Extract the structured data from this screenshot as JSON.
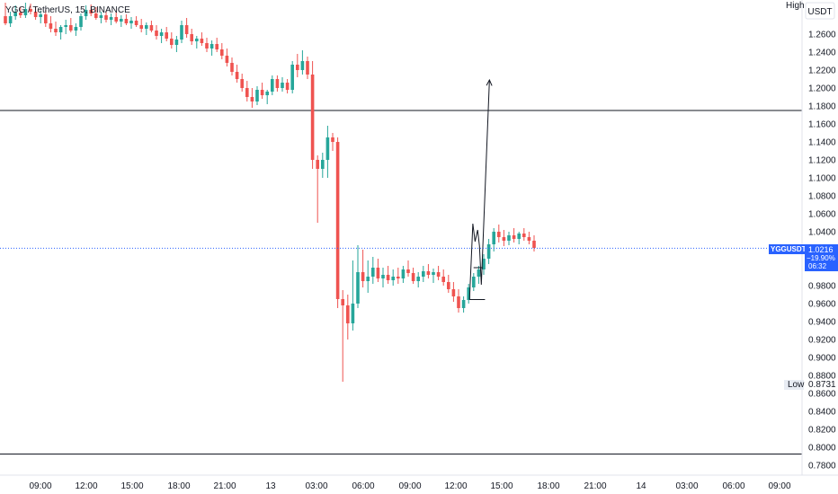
{
  "header": {
    "symbol_title": "YGG / TetherUS, 15, BINANCE",
    "currency_button": "USDT",
    "high_label": "High",
    "low_label": "Low",
    "low_value": "0.8731"
  },
  "price_tag": {
    "symbol": "YGGUSDT",
    "price": "1.0216",
    "change": "−19.90%",
    "countdown": "06:32"
  },
  "colors": {
    "up": "#26a69a",
    "down": "#ef5350",
    "price_line": "#2962ff",
    "drawing": "#131722",
    "grid_border": "#e0e3eb"
  },
  "chart_data": {
    "type": "candlestick",
    "ylim": [
      0.77,
      1.295
    ],
    "y_ticks": [
      1.26,
      1.24,
      1.22,
      1.2,
      1.18,
      1.16,
      1.14,
      1.12,
      1.1,
      1.08,
      1.06,
      1.04,
      1.02,
      1.0,
      0.98,
      0.96,
      0.94,
      0.92,
      0.9,
      0.88,
      0.86,
      0.84,
      0.82,
      0.8,
      0.78
    ],
    "x_ticks": [
      "09:00",
      "12:00",
      "15:00",
      "18:00",
      "21:00",
      "13",
      "03:00",
      "06:00",
      "09:00",
      "12:00",
      "15:00",
      "18:00",
      "21:00",
      "14",
      "03:00",
      "06:00",
      "09:00"
    ],
    "last_price": 1.0216,
    "low": 0.8731,
    "horizontal_levels": [
      1.175,
      0.7925
    ],
    "candles": [
      [
        1.28,
        1.295,
        1.27,
        1.272
      ],
      [
        1.272,
        1.285,
        1.268,
        1.28
      ],
      [
        1.28,
        1.292,
        1.276,
        1.284
      ],
      [
        1.284,
        1.29,
        1.278,
        1.281
      ],
      [
        1.281,
        1.295,
        1.278,
        1.288
      ],
      [
        1.288,
        1.294,
        1.282,
        1.285
      ],
      [
        1.285,
        1.291,
        1.276,
        1.279
      ],
      [
        1.279,
        1.286,
        1.272,
        1.282
      ],
      [
        1.282,
        1.287,
        1.268,
        1.272
      ],
      [
        1.272,
        1.28,
        1.262,
        1.266
      ],
      [
        1.266,
        1.274,
        1.258,
        1.262
      ],
      [
        1.262,
        1.27,
        1.254,
        1.268
      ],
      [
        1.268,
        1.276,
        1.26,
        1.27
      ],
      [
        1.27,
        1.278,
        1.262,
        1.264
      ],
      [
        1.264,
        1.272,
        1.258,
        1.268
      ],
      [
        1.268,
        1.283,
        1.264,
        1.28
      ],
      [
        1.28,
        1.292,
        1.276,
        1.287
      ],
      [
        1.287,
        1.293,
        1.28,
        1.283
      ],
      [
        1.283,
        1.29,
        1.276,
        1.278
      ],
      [
        1.278,
        1.285,
        1.272,
        1.281
      ],
      [
        1.281,
        1.286,
        1.273,
        1.276
      ],
      [
        1.276,
        1.283,
        1.27,
        1.279
      ],
      [
        1.279,
        1.284,
        1.272,
        1.274
      ],
      [
        1.274,
        1.281,
        1.268,
        1.277
      ],
      [
        1.277,
        1.282,
        1.27,
        1.272
      ],
      [
        1.272,
        1.279,
        1.266,
        1.275
      ],
      [
        1.275,
        1.28,
        1.268,
        1.27
      ],
      [
        1.27,
        1.277,
        1.262,
        1.266
      ],
      [
        1.266,
        1.273,
        1.259,
        1.27
      ],
      [
        1.27,
        1.275,
        1.262,
        1.264
      ],
      [
        1.264,
        1.27,
        1.254,
        1.258
      ],
      [
        1.258,
        1.266,
        1.25,
        1.262
      ],
      [
        1.262,
        1.268,
        1.252,
        1.255
      ],
      [
        1.255,
        1.262,
        1.244,
        1.248
      ],
      [
        1.248,
        1.258,
        1.24,
        1.254
      ],
      [
        1.254,
        1.275,
        1.25,
        1.27
      ],
      [
        1.27,
        1.278,
        1.256,
        1.26
      ],
      [
        1.26,
        1.266,
        1.248,
        1.252
      ],
      [
        1.252,
        1.258,
        1.244,
        1.255
      ],
      [
        1.255,
        1.262,
        1.247,
        1.25
      ],
      [
        1.25,
        1.256,
        1.24,
        1.244
      ],
      [
        1.244,
        1.253,
        1.236,
        1.249
      ],
      [
        1.249,
        1.256,
        1.24,
        1.243
      ],
      [
        1.243,
        1.25,
        1.232,
        1.236
      ],
      [
        1.236,
        1.244,
        1.224,
        1.228
      ],
      [
        1.228,
        1.234,
        1.214,
        1.218
      ],
      [
        1.218,
        1.226,
        1.206,
        1.21
      ],
      [
        1.21,
        1.216,
        1.196,
        1.2
      ],
      [
        1.2,
        1.208,
        1.185,
        1.19
      ],
      [
        1.19,
        1.2,
        1.178,
        1.185
      ],
      [
        1.185,
        1.202,
        1.181,
        1.198
      ],
      [
        1.198,
        1.206,
        1.188,
        1.192
      ],
      [
        1.192,
        1.198,
        1.182,
        1.196
      ],
      [
        1.196,
        1.214,
        1.192,
        1.21
      ],
      [
        1.21,
        1.214,
        1.196,
        1.2
      ],
      [
        1.2,
        1.212,
        1.196,
        1.206
      ],
      [
        1.206,
        1.21,
        1.194,
        1.198
      ],
      [
        1.198,
        1.23,
        1.194,
        1.226
      ],
      [
        1.226,
        1.238,
        1.212,
        1.22
      ],
      [
        1.22,
        1.242,
        1.215,
        1.23
      ],
      [
        1.23,
        1.235,
        1.21,
        1.215
      ],
      [
        1.215,
        1.23,
        1.11,
        1.12
      ],
      [
        1.12,
        1.125,
        1.05,
        1.11
      ],
      [
        1.11,
        1.128,
        1.1,
        1.12
      ],
      [
        1.12,
        1.158,
        1.1,
        1.145
      ],
      [
        1.145,
        1.15,
        1.13,
        1.14
      ],
      [
        1.14,
        1.145,
        0.955,
        0.965
      ],
      [
        0.965,
        0.975,
        0.873,
        0.958
      ],
      [
        0.958,
        0.97,
        0.92,
        0.938
      ],
      [
        0.938,
        1.008,
        0.93,
        0.96
      ],
      [
        0.96,
        1.025,
        0.955,
        0.995
      ],
      [
        0.995,
        1.02,
        0.978,
        0.985
      ],
      [
        0.985,
        1.008,
        0.972,
        0.99
      ],
      [
        0.99,
        1.012,
        0.982,
        1.0
      ],
      [
        1.0,
        1.01,
        0.984,
        0.988
      ],
      [
        0.988,
        1.0,
        0.978,
        0.992
      ],
      [
        0.992,
        1.002,
        0.982,
        0.986
      ],
      [
        0.986,
        0.998,
        0.98,
        0.99
      ],
      [
        0.99,
        1.0,
        0.982,
        0.988
      ],
      [
        0.988,
        1.002,
        0.983,
        0.998
      ],
      [
        0.998,
        1.008,
        0.99,
        0.994
      ],
      [
        0.994,
        1.0,
        0.982,
        0.985
      ],
      [
        0.985,
        0.995,
        0.978,
        0.99
      ],
      [
        0.99,
        1.002,
        0.984,
        0.996
      ],
      [
        0.996,
        1.004,
        0.988,
        0.992
      ],
      [
        0.992,
        0.999,
        0.983,
        0.995
      ],
      [
        0.995,
        1.002,
        0.986,
        0.99
      ],
      [
        0.99,
        0.998,
        0.98,
        0.984
      ],
      [
        0.984,
        0.992,
        0.972,
        0.976
      ],
      [
        0.976,
        0.984,
        0.962,
        0.968
      ],
      [
        0.968,
        0.976,
        0.95,
        0.955
      ],
      [
        0.955,
        0.968,
        0.95,
        0.964
      ],
      [
        0.964,
        0.982,
        0.96,
        0.978
      ],
      [
        0.978,
        0.994,
        0.974,
        0.99
      ],
      [
        0.99,
        1.002,
        0.982,
        0.998
      ],
      [
        0.998,
        1.015,
        0.992,
        1.01
      ],
      [
        1.01,
        1.032,
        1.004,
        1.026
      ],
      [
        1.026,
        1.044,
        1.018,
        1.04
      ],
      [
        1.04,
        1.048,
        1.028,
        1.034
      ],
      [
        1.034,
        1.042,
        1.024,
        1.03
      ],
      [
        1.03,
        1.04,
        1.025,
        1.036
      ],
      [
        1.036,
        1.044,
        1.028,
        1.032
      ],
      [
        1.032,
        1.04,
        1.026,
        1.038
      ],
      [
        1.038,
        1.044,
        1.03,
        1.034
      ],
      [
        1.034,
        1.04,
        1.026,
        1.03
      ],
      [
        1.03,
        1.036,
        1.018,
        1.022
      ]
    ]
  },
  "drawings": {
    "pattern_path": [
      [
        1.037,
        0.9645
      ],
      [
        1.046,
        1.049
      ],
      [
        1.052,
        1.029
      ],
      [
        1.059,
        1.042
      ],
      [
        1.064,
        1.024
      ],
      [
        1.069,
        0.981
      ],
      [
        1.091,
        1.209
      ]
    ],
    "segments": [
      [
        [
          1.048,
          1.0
        ],
        [
          1.073,
          1.0
        ]
      ],
      [
        [
          1.037,
          0.9645
        ],
        [
          1.079,
          0.9645
        ]
      ]
    ]
  }
}
